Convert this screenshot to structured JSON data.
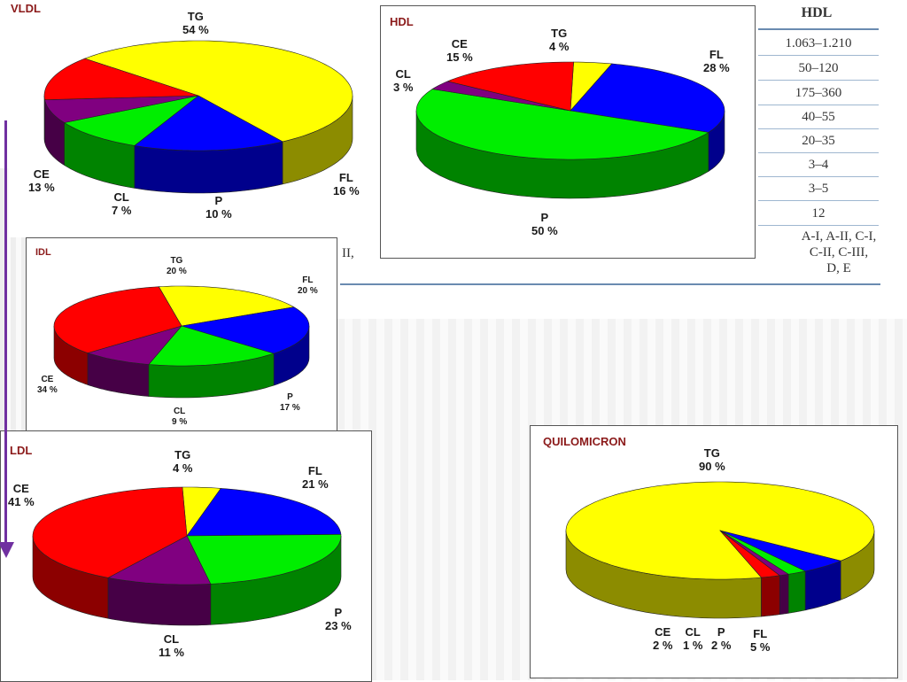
{
  "table": {
    "header": "HDL",
    "rows": [
      "1.063–1.210",
      "50–120",
      "175–360",
      "40–55",
      "20–35",
      "3–4",
      "3–5",
      "12"
    ],
    "apo_lines": [
      "A-I, A-II, C-I,",
      "C-II, C-III,",
      "D, E"
    ],
    "fragment_left": "II,",
    "fragment_mid1": "...",
    "fragment_mid2": "..."
  },
  "colors": {
    "TG": "#ffff00",
    "FL": "#0000ff",
    "P": "#00ee00",
    "CL": "#800080",
    "CE": "#ff0000",
    "title": "#8b1a1a",
    "arrow": "#7030a0"
  },
  "chart_data": [
    {
      "type": "pie",
      "title": "VLDL",
      "slices": [
        {
          "name": "TG",
          "value": 54,
          "label": "54 %"
        },
        {
          "name": "FL",
          "value": 16,
          "label": "16 %"
        },
        {
          "name": "P",
          "value": 10,
          "label": "10 %"
        },
        {
          "name": "CL",
          "value": 7,
          "label": "7 %"
        },
        {
          "name": "CE",
          "value": 13,
          "label": "13 %"
        }
      ]
    },
    {
      "type": "pie",
      "title": "HDL",
      "slices": [
        {
          "name": "TG",
          "value": 4,
          "label": "4 %"
        },
        {
          "name": "FL",
          "value": 28,
          "label": "28 %"
        },
        {
          "name": "P",
          "value": 50,
          "label": "50 %"
        },
        {
          "name": "CL",
          "value": 3,
          "label": "3 %"
        },
        {
          "name": "CE",
          "value": 15,
          "label": "15 %"
        }
      ]
    },
    {
      "type": "pie",
      "title": "IDL",
      "slices": [
        {
          "name": "TG",
          "value": 20,
          "label": "20 %"
        },
        {
          "name": "FL",
          "value": 20,
          "label": "20 %"
        },
        {
          "name": "P",
          "value": 17,
          "label": "17 %"
        },
        {
          "name": "CL",
          "value": 9,
          "label": "9 %"
        },
        {
          "name": "CE",
          "value": 34,
          "label": "34 %"
        }
      ]
    },
    {
      "type": "pie",
      "title": "LDL",
      "slices": [
        {
          "name": "TG",
          "value": 4,
          "label": "4 %"
        },
        {
          "name": "FL",
          "value": 21,
          "label": "21 %"
        },
        {
          "name": "P",
          "value": 23,
          "label": "23 %"
        },
        {
          "name": "CL",
          "value": 11,
          "label": "11 %"
        },
        {
          "name": "CE",
          "value": 41,
          "label": "41 %"
        }
      ]
    },
    {
      "type": "pie",
      "title": "QUILOMICRON",
      "slices": [
        {
          "name": "TG",
          "value": 90,
          "label": "90 %"
        },
        {
          "name": "FL",
          "value": 5,
          "label": "5 %"
        },
        {
          "name": "P",
          "value": 2,
          "label": "2 %"
        },
        {
          "name": "CL",
          "value": 1,
          "label": "1 %"
        },
        {
          "name": "CE",
          "value": 2,
          "label": "2 %"
        }
      ]
    }
  ]
}
